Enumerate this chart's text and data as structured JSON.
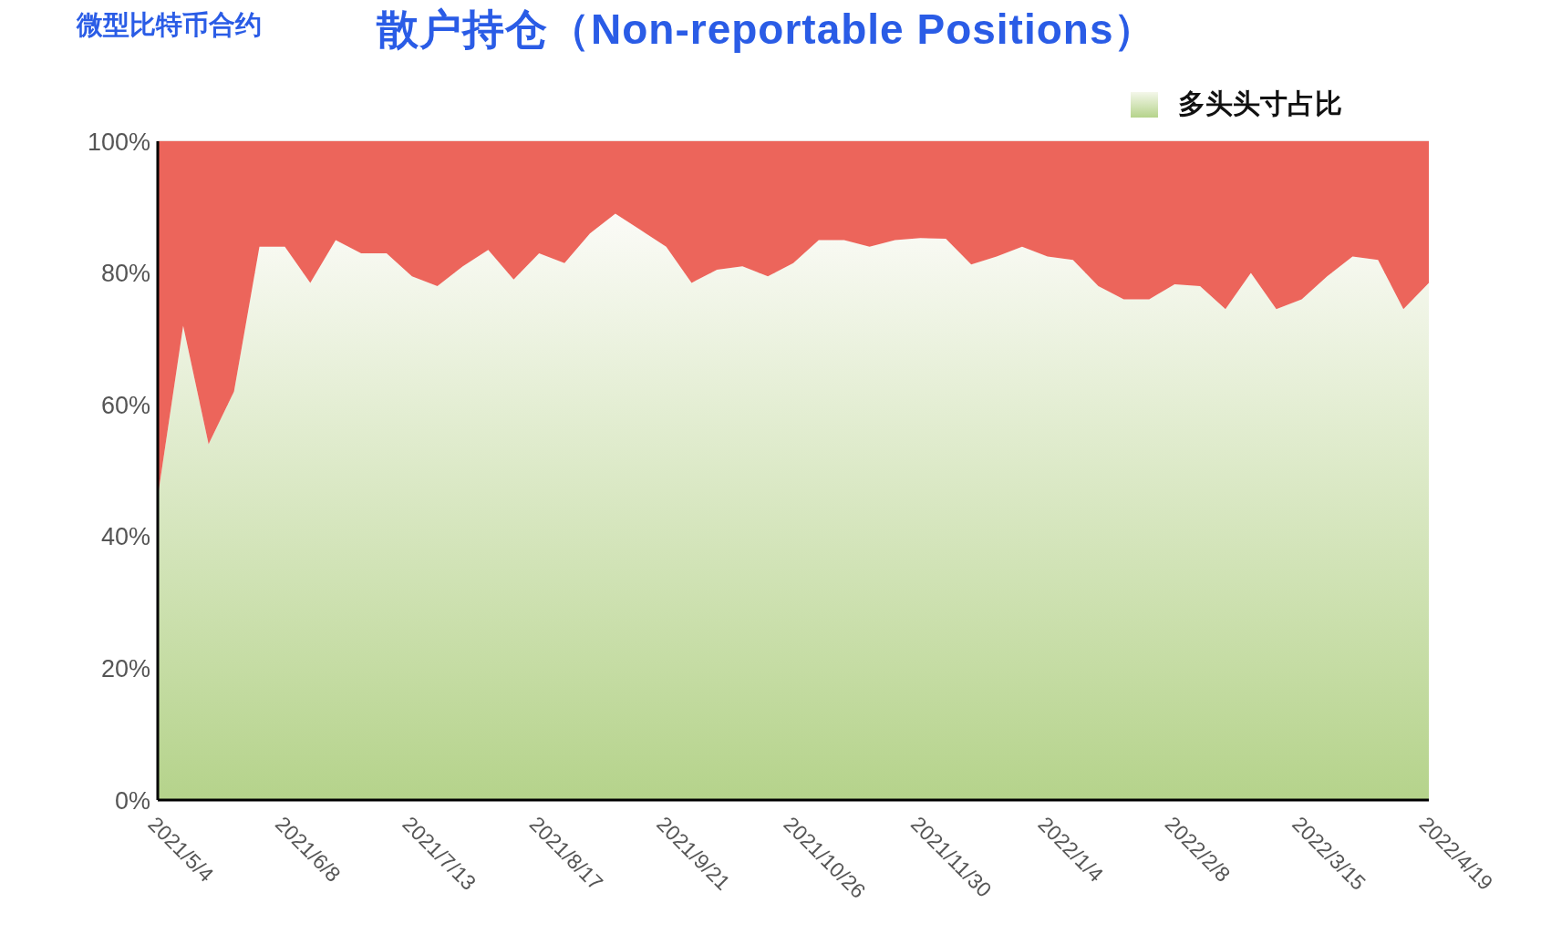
{
  "chart_data": {
    "type": "area",
    "title": "散户持仓（Non-reportable Positions）",
    "subtitle": "微型比特币合约",
    "categories": [
      "2021/5/4",
      null,
      null,
      null,
      null,
      "2021/6/8",
      null,
      null,
      null,
      null,
      "2021/7/13",
      null,
      null,
      null,
      null,
      "2021/8/17",
      null,
      null,
      null,
      null,
      "2021/9/21",
      null,
      null,
      null,
      null,
      "2021/10/26",
      null,
      null,
      null,
      null,
      "2021/11/30",
      null,
      null,
      null,
      null,
      "2022/1/4",
      null,
      null,
      null,
      null,
      "2022/2/8",
      null,
      null,
      null,
      null,
      "2022/3/15",
      null,
      null,
      null,
      null,
      "2022/4/19"
    ],
    "series": [
      {
        "name": "多头头寸占比",
        "color": "#b5d38b",
        "values": [
          46,
          72,
          54,
          62,
          84,
          84,
          78.5,
          85,
          83,
          83,
          79.5,
          78,
          81,
          83.5,
          79,
          83,
          81.5,
          86,
          89,
          86.5,
          84,
          78.5,
          80.5,
          81,
          79.5,
          81.5,
          85,
          85,
          84,
          85,
          85.3,
          85.2,
          81.3,
          82.5,
          84,
          82.5,
          82,
          78,
          76,
          76,
          78.3,
          78,
          74.5,
          80,
          74.5,
          76,
          79.5,
          82.5,
          82,
          74.5,
          78.5
        ]
      },
      {
        "color": "#ec655b",
        "values": [
          54,
          28,
          46,
          38,
          16,
          16,
          21.5,
          15,
          17,
          17,
          20.5,
          22,
          19,
          16.5,
          21,
          17,
          18.5,
          14,
          11,
          13.5,
          16,
          21.5,
          19.5,
          19,
          20.5,
          18.5,
          15,
          15,
          16,
          15,
          14.7,
          14.8,
          18.7,
          17.5,
          16,
          17.5,
          18,
          22,
          24,
          24,
          21.7,
          22,
          25.5,
          20,
          25.5,
          24,
          20.5,
          17.5,
          18,
          25.5,
          21.5
        ]
      }
    ],
    "stacked": true,
    "ylim": [
      0,
      100
    ],
    "yticks": [
      {
        "value": 0,
        "label": "0%"
      },
      {
        "value": 20,
        "label": "20%"
      },
      {
        "value": 40,
        "label": "40%"
      },
      {
        "value": 60,
        "label": "60%"
      },
      {
        "value": 80,
        "label": "80%"
      },
      {
        "value": 100,
        "label": "100%"
      }
    ],
    "grid": "y",
    "legend": "top right"
  }
}
